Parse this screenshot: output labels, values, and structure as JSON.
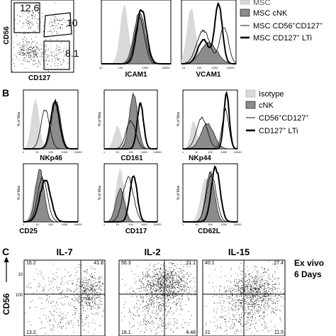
{
  "panelA": {
    "ylabel": "CD56",
    "xlabel": "CD127",
    "gates": [
      "12.6",
      "10",
      "8.1"
    ],
    "hists": [
      {
        "xlabel": "ICAM1",
        "ylabel": "",
        "ticks": [
          "10",
          "100",
          "1000",
          "10000"
        ]
      },
      {
        "xlabel": "VCAM1",
        "ylabel": "",
        "ticks": [
          "10",
          "100",
          "1000",
          "10000"
        ]
      }
    ],
    "legend": [
      "MSC",
      "MSC cNK",
      "MSC CD56",
      "+",
      "CD127",
      "+",
      "MSC CD127",
      "+",
      " LTi"
    ]
  },
  "panelB": {
    "letter": "B",
    "ymax_label": "% of Max",
    "ticks": [
      "1",
      "10",
      "100",
      "1000",
      "10000"
    ],
    "hists": [
      {
        "xlabel": "NKp46"
      },
      {
        "xlabel": "CD161"
      },
      {
        "xlabel": "NKp44"
      },
      {
        "xlabel": "CD25"
      },
      {
        "xlabel": "CD117"
      },
      {
        "xlabel": "CD62L"
      }
    ],
    "legend": [
      "Isotype",
      "cNK",
      "CD56",
      "+",
      "CD127",
      "+",
      "CD127",
      "+",
      " LTi"
    ]
  },
  "panelC": {
    "letter": "C",
    "ylabel": "CD56",
    "yticks": [
      "10",
      "100"
    ],
    "side_label_1": "Ex vivo",
    "side_label_2": "6 Days",
    "plots": [
      {
        "title": "IL-7",
        "quadrants": [
          "16.2",
          "41.8",
          "13.2",
          ""
        ]
      },
      {
        "title": "IL-2",
        "quadrants": [
          "56.3",
          "21.1",
          "18.1",
          "4.48"
        ]
      },
      {
        "title": "IL-15",
        "quadrants": [
          "40.1",
          "27.4",
          "21",
          "11.5"
        ]
      }
    ]
  },
  "colors": {
    "isotype_fill": "#d9d9d9",
    "cnk_fill": "#8c8c8c",
    "line": "#000000"
  }
}
